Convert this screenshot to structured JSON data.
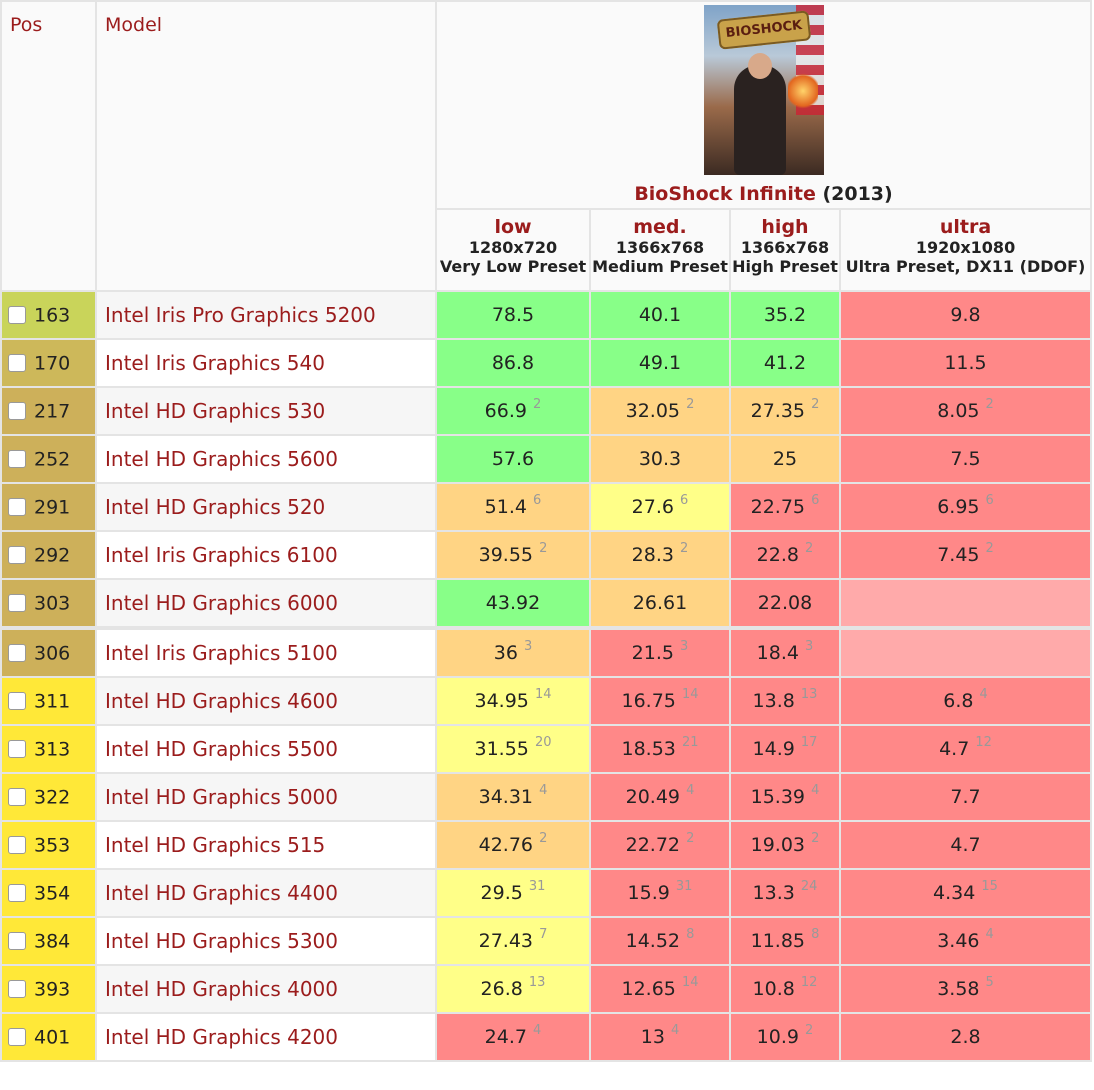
{
  "headers": {
    "pos": "Pos",
    "model": "Model"
  },
  "game": {
    "title": "BioShock Infinite",
    "year": "(2013)",
    "cover_logo": "BIOSHOCK"
  },
  "settings": [
    {
      "level": "low",
      "resolution": "1280x720",
      "preset": "Very Low Preset"
    },
    {
      "level": "med.",
      "resolution": "1366x768",
      "preset": "Medium Preset"
    },
    {
      "level": "high",
      "resolution": "1366x768",
      "preset": "High Preset"
    },
    {
      "level": "ultra",
      "resolution": "1920x1080",
      "preset": "Ultra Preset, DX11 (DDOF)"
    }
  ],
  "pos_colors": {
    "163": "#c9d45a",
    "170": "#cdb85a",
    "217": "#cdb05a",
    "252": "#cdb05a",
    "291": "#cdb05a",
    "292": "#cdb05a",
    "303": "#cdb05a",
    "306": "#cdb05a",
    "yellow": "#ffe838"
  },
  "rows": [
    {
      "pos": "163",
      "model": "Intel Iris Pro Graphics 5200",
      "cells": [
        [
          "78.5",
          "",
          "g"
        ],
        [
          "40.1",
          "",
          "g"
        ],
        [
          "35.2",
          "",
          "g"
        ],
        [
          "9.8",
          "",
          "r"
        ]
      ]
    },
    {
      "pos": "170",
      "model": "Intel Iris Graphics 540",
      "cells": [
        [
          "86.8",
          "",
          "g"
        ],
        [
          "49.1",
          "",
          "g"
        ],
        [
          "41.2",
          "",
          "g"
        ],
        [
          "11.5",
          "",
          "r"
        ]
      ]
    },
    {
      "pos": "217",
      "model": "Intel HD Graphics 530",
      "cells": [
        [
          "66.9",
          "2",
          "g"
        ],
        [
          "32.05",
          "2",
          "o"
        ],
        [
          "27.35",
          "2",
          "o"
        ],
        [
          "8.05",
          "2",
          "r"
        ]
      ]
    },
    {
      "pos": "252",
      "model": "Intel HD Graphics 5600",
      "cells": [
        [
          "57.6",
          "",
          "g"
        ],
        [
          "30.3",
          "",
          "o"
        ],
        [
          "25",
          "",
          "o"
        ],
        [
          "7.5",
          "",
          "r"
        ]
      ]
    },
    {
      "pos": "291",
      "model": "Intel HD Graphics 520",
      "cells": [
        [
          "51.4",
          "6",
          "o"
        ],
        [
          "27.6",
          "6",
          "y"
        ],
        [
          "22.75",
          "6",
          "r"
        ],
        [
          "6.95",
          "6",
          "r"
        ]
      ]
    },
    {
      "pos": "292",
      "model": "Intel Iris Graphics 6100",
      "cells": [
        [
          "39.55",
          "2",
          "o"
        ],
        [
          "28.3",
          "2",
          "o"
        ],
        [
          "22.8",
          "2",
          "r"
        ],
        [
          "7.45",
          "2",
          "r"
        ]
      ]
    },
    {
      "pos": "303",
      "model": "Intel HD Graphics 6000",
      "cells": [
        [
          "43.92",
          "",
          "g"
        ],
        [
          "26.61",
          "",
          "o"
        ],
        [
          "22.08",
          "",
          "r"
        ],
        [
          "",
          "",
          "rl"
        ]
      ]
    },
    {
      "pos": "306",
      "model": "Intel Iris Graphics 5100",
      "cells": [
        [
          "36",
          "3",
          "o"
        ],
        [
          "21.5",
          "3",
          "r"
        ],
        [
          "18.4",
          "3",
          "r"
        ],
        [
          "",
          "",
          "rl"
        ]
      ]
    },
    {
      "pos": "311",
      "model": "Intel HD Graphics 4600",
      "cells": [
        [
          "34.95",
          "14",
          "y"
        ],
        [
          "16.75",
          "14",
          "r"
        ],
        [
          "13.8",
          "13",
          "r"
        ],
        [
          "6.8",
          "4",
          "r"
        ]
      ]
    },
    {
      "pos": "313",
      "model": "Intel HD Graphics 5500",
      "cells": [
        [
          "31.55",
          "20",
          "y"
        ],
        [
          "18.53",
          "21",
          "r"
        ],
        [
          "14.9",
          "17",
          "r"
        ],
        [
          "4.7",
          "12",
          "r"
        ]
      ]
    },
    {
      "pos": "322",
      "model": "Intel HD Graphics 5000",
      "cells": [
        [
          "34.31",
          "4",
          "o"
        ],
        [
          "20.49",
          "4",
          "r"
        ],
        [
          "15.39",
          "4",
          "r"
        ],
        [
          "7.7",
          "",
          "r"
        ]
      ]
    },
    {
      "pos": "353",
      "model": "Intel HD Graphics 515",
      "cells": [
        [
          "42.76",
          "2",
          "o"
        ],
        [
          "22.72",
          "2",
          "r"
        ],
        [
          "19.03",
          "2",
          "r"
        ],
        [
          "4.7",
          "",
          "r"
        ]
      ]
    },
    {
      "pos": "354",
      "model": "Intel HD Graphics 4400",
      "cells": [
        [
          "29.5",
          "31",
          "y"
        ],
        [
          "15.9",
          "31",
          "r"
        ],
        [
          "13.3",
          "24",
          "r"
        ],
        [
          "4.34",
          "15",
          "r"
        ]
      ]
    },
    {
      "pos": "384",
      "model": "Intel HD Graphics 5300",
      "cells": [
        [
          "27.43",
          "7",
          "y"
        ],
        [
          "14.52",
          "8",
          "r"
        ],
        [
          "11.85",
          "8",
          "r"
        ],
        [
          "3.46",
          "4",
          "r"
        ]
      ]
    },
    {
      "pos": "393",
      "model": "Intel HD Graphics 4000",
      "cells": [
        [
          "26.8",
          "13",
          "y"
        ],
        [
          "12.65",
          "14",
          "r"
        ],
        [
          "10.8",
          "12",
          "r"
        ],
        [
          "3.58",
          "5",
          "r"
        ]
      ]
    },
    {
      "pos": "401",
      "model": "Intel HD Graphics 4200",
      "cells": [
        [
          "24.7",
          "4",
          "r"
        ],
        [
          "13",
          "4",
          "r"
        ],
        [
          "10.9",
          "2",
          "r"
        ],
        [
          "2.8",
          "",
          "r"
        ]
      ]
    }
  ]
}
